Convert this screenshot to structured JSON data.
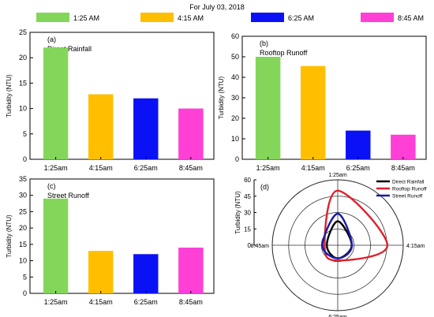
{
  "header": {
    "title": "For July 03, 2018"
  },
  "legend": [
    {
      "label": "1:25 AM",
      "color": "#84d65a"
    },
    {
      "label": "4:15 AM",
      "color": "#ffbf00"
    },
    {
      "label": "6:25 AM",
      "color": "#0a12f5"
    },
    {
      "label": "8:45 AM",
      "color": "#ff3fd6"
    }
  ],
  "chart_data": [
    {
      "type": "bar",
      "panel": "(a)",
      "title": "Direct Rainfall",
      "ylabel": "Turbidity (NTU)",
      "categories": [
        "1:25am",
        "4:15am",
        "6:25am",
        "8:45am"
      ],
      "values": [
        22,
        12.8,
        12,
        10
      ],
      "colors": [
        "#84d65a",
        "#ffbf00",
        "#0a12f5",
        "#ff3fd6"
      ],
      "ylim": [
        0,
        25
      ],
      "yticks": [
        0,
        5,
        10,
        15,
        20,
        25
      ]
    },
    {
      "type": "bar",
      "panel": "(b)",
      "title": "Rooftop Runoff",
      "ylabel": "Turbidity (NTU)",
      "categories": [
        "1:25am",
        "4:15am",
        "6:25am",
        "8:45am"
      ],
      "values": [
        50,
        45.5,
        14,
        12
      ],
      "colors": [
        "#84d65a",
        "#ffbf00",
        "#0a12f5",
        "#ff3fd6"
      ],
      "ylim": [
        0,
        60
      ],
      "yticks": [
        0,
        10,
        20,
        30,
        40,
        50,
        60
      ]
    },
    {
      "type": "bar",
      "panel": "(c)",
      "title": "Street Runoff",
      "ylabel": "Turbidity (NTU)",
      "categories": [
        "1:25am",
        "4:15am",
        "6:25am",
        "8:45am"
      ],
      "values": [
        29,
        13,
        12,
        14
      ],
      "colors": [
        "#84d65a",
        "#ffbf00",
        "#0a12f5",
        "#ff3fd6"
      ],
      "ylim": [
        0,
        35
      ],
      "yticks": [
        0,
        5,
        10,
        15,
        20,
        25,
        30,
        35
      ]
    },
    {
      "type": "line",
      "subtype": "polar",
      "panel": "(d)",
      "ylabel": "Turbidity (NTU)",
      "angular_labels": [
        "1:25am",
        "4:15am",
        "6:25am",
        "8:45am"
      ],
      "radial_ticks": [
        0,
        15,
        30,
        45,
        60
      ],
      "rmax": 60,
      "series": [
        {
          "name": "Direct Rainfall",
          "color": "#000000",
          "values": [
            22,
            12.8,
            12,
            10
          ]
        },
        {
          "name": "Rooftop Runoff",
          "color": "#e0202a",
          "values": [
            50,
            45.5,
            14,
            12
          ]
        },
        {
          "name": "Street Runoff",
          "color": "#1a1aa8",
          "values": [
            29,
            13,
            12,
            14
          ]
        }
      ],
      "legend_position": "top-right"
    }
  ]
}
